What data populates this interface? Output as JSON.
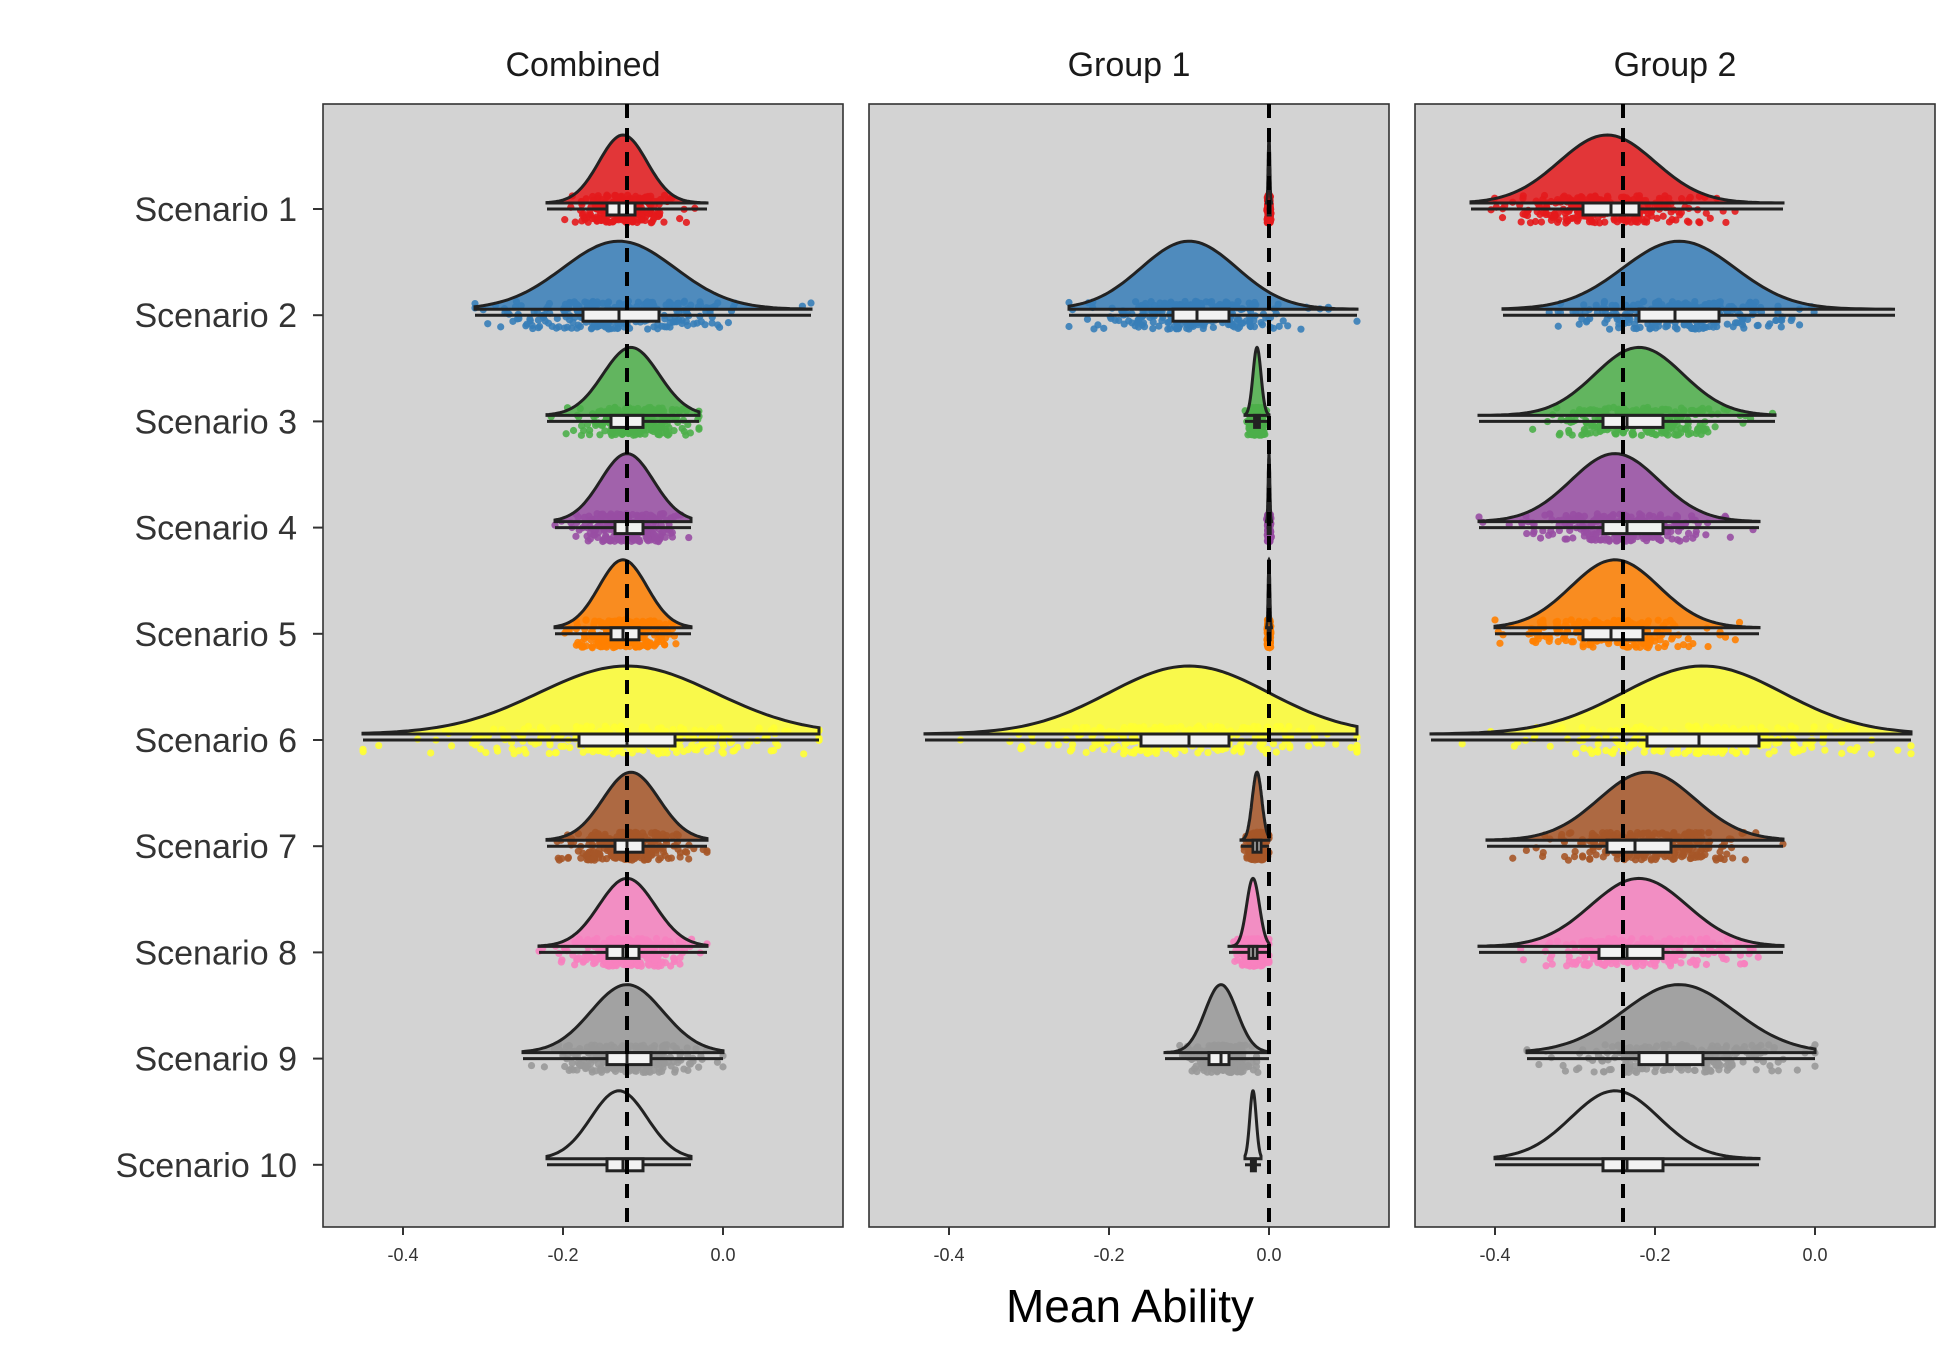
{
  "chart_data": {
    "type": "raincloud",
    "xlabel": "Mean Ability",
    "ylabel": "",
    "xlim": [
      -0.5,
      0.15
    ],
    "x_ticks": [
      -0.4,
      -0.2,
      0.0
    ],
    "x_tick_labels": [
      "-0.4",
      "-0.2",
      "0.0"
    ],
    "grid": false,
    "legend": "none",
    "panel_background": "#d3d3d3",
    "categories": [
      "Scenario 1",
      "Scenario 2",
      "Scenario 3",
      "Scenario 4",
      "Scenario 5",
      "Scenario 6",
      "Scenario 7",
      "Scenario 8",
      "Scenario 9",
      "Scenario 10"
    ],
    "colors": [
      "#e41a1c",
      "#377eb8",
      "#4daf4a",
      "#984ea3",
      "#ff7f00",
      "#ffff33",
      "#a65628",
      "#f781bf",
      "#999999",
      "#d3d3d3"
    ],
    "panels": [
      {
        "title": "Combined",
        "ref_line": -0.12,
        "series": [
          {
            "category": "Scenario 1",
            "mean": -0.125,
            "sd": 0.03,
            "min": -0.22,
            "max": -0.02,
            "q1": -0.145,
            "median": -0.13,
            "q3": -0.11
          },
          {
            "category": "Scenario 2",
            "mean": -0.13,
            "sd": 0.07,
            "min": -0.31,
            "max": 0.11,
            "q1": -0.175,
            "median": -0.13,
            "q3": -0.08
          },
          {
            "category": "Scenario 3",
            "mean": -0.115,
            "sd": 0.035,
            "min": -0.22,
            "max": -0.03,
            "q1": -0.14,
            "median": -0.12,
            "q3": -0.1
          },
          {
            "category": "Scenario 4",
            "mean": -0.12,
            "sd": 0.033,
            "min": -0.21,
            "max": -0.04,
            "q1": -0.135,
            "median": -0.12,
            "q3": -0.1
          },
          {
            "category": "Scenario 5",
            "mean": -0.125,
            "sd": 0.03,
            "min": -0.21,
            "max": -0.04,
            "q1": -0.14,
            "median": -0.125,
            "q3": -0.105
          },
          {
            "category": "Scenario 6",
            "mean": -0.12,
            "sd": 0.11,
            "min": -0.45,
            "max": 0.12,
            "q1": -0.18,
            "median": -0.12,
            "q3": -0.06
          },
          {
            "category": "Scenario 7",
            "mean": -0.115,
            "sd": 0.035,
            "min": -0.22,
            "max": -0.02,
            "q1": -0.135,
            "median": -0.12,
            "q3": -0.1
          },
          {
            "category": "Scenario 8",
            "mean": -0.12,
            "sd": 0.035,
            "min": -0.23,
            "max": -0.02,
            "q1": -0.145,
            "median": -0.125,
            "q3": -0.105
          },
          {
            "category": "Scenario 9",
            "mean": -0.12,
            "sd": 0.045,
            "min": -0.25,
            "max": 0.0,
            "q1": -0.145,
            "median": -0.12,
            "q3": -0.09
          },
          {
            "category": "Scenario 10",
            "mean": -0.13,
            "sd": 0.035,
            "min": -0.22,
            "max": -0.04,
            "q1": -0.145,
            "median": -0.125,
            "q3": -0.1
          }
        ]
      },
      {
        "title": "Group 1",
        "ref_line": 0.0,
        "series": [
          {
            "category": "Scenario 1",
            "mean": 0.0,
            "sd": 0.001,
            "min": -0.003,
            "max": 0.003,
            "q1": -0.001,
            "median": 0.0,
            "q3": 0.001
          },
          {
            "category": "Scenario 2",
            "mean": -0.1,
            "sd": 0.06,
            "min": -0.25,
            "max": 0.11,
            "q1": -0.12,
            "median": -0.09,
            "q3": -0.05
          },
          {
            "category": "Scenario 3",
            "mean": -0.015,
            "sd": 0.005,
            "min": -0.03,
            "max": 0.0,
            "q1": -0.018,
            "median": -0.015,
            "q3": -0.012
          },
          {
            "category": "Scenario 4",
            "mean": 0.0,
            "sd": 0.001,
            "min": -0.003,
            "max": 0.003,
            "q1": -0.001,
            "median": 0.0,
            "q3": 0.001
          },
          {
            "category": "Scenario 5",
            "mean": 0.0,
            "sd": 0.001,
            "min": -0.003,
            "max": 0.003,
            "q1": -0.001,
            "median": 0.0,
            "q3": 0.001
          },
          {
            "category": "Scenario 6",
            "mean": -0.1,
            "sd": 0.1,
            "min": -0.43,
            "max": 0.11,
            "q1": -0.16,
            "median": -0.1,
            "q3": -0.05
          },
          {
            "category": "Scenario 7",
            "mean": -0.015,
            "sd": 0.006,
            "min": -0.035,
            "max": 0.0,
            "q1": -0.02,
            "median": -0.015,
            "q3": -0.01
          },
          {
            "category": "Scenario 8",
            "mean": -0.02,
            "sd": 0.008,
            "min": -0.05,
            "max": 0.0,
            "q1": -0.025,
            "median": -0.02,
            "q3": -0.015
          },
          {
            "category": "Scenario 9",
            "mean": -0.06,
            "sd": 0.02,
            "min": -0.13,
            "max": 0.0,
            "q1": -0.075,
            "median": -0.06,
            "q3": -0.05
          },
          {
            "category": "Scenario 10",
            "mean": -0.02,
            "sd": 0.004,
            "min": -0.03,
            "max": -0.01,
            "q1": -0.022,
            "median": -0.02,
            "q3": -0.017
          }
        ]
      },
      {
        "title": "Group 2",
        "ref_line": -0.24,
        "series": [
          {
            "category": "Scenario 1",
            "mean": -0.26,
            "sd": 0.06,
            "min": -0.43,
            "max": -0.04,
            "q1": -0.29,
            "median": -0.255,
            "q3": -0.22
          },
          {
            "category": "Scenario 2",
            "mean": -0.17,
            "sd": 0.07,
            "min": -0.39,
            "max": 0.1,
            "q1": -0.22,
            "median": -0.175,
            "q3": -0.12
          },
          {
            "category": "Scenario 3",
            "mean": -0.22,
            "sd": 0.055,
            "min": -0.42,
            "max": -0.05,
            "q1": -0.265,
            "median": -0.235,
            "q3": -0.19
          },
          {
            "category": "Scenario 4",
            "mean": -0.25,
            "sd": 0.055,
            "min": -0.42,
            "max": -0.07,
            "q1": -0.265,
            "median": -0.235,
            "q3": -0.19
          },
          {
            "category": "Scenario 5",
            "mean": -0.25,
            "sd": 0.055,
            "min": -0.4,
            "max": -0.07,
            "q1": -0.29,
            "median": -0.255,
            "q3": -0.215
          },
          {
            "category": "Scenario 6",
            "mean": -0.14,
            "sd": 0.1,
            "min": -0.48,
            "max": 0.12,
            "q1": -0.21,
            "median": -0.145,
            "q3": -0.07
          },
          {
            "category": "Scenario 7",
            "mean": -0.21,
            "sd": 0.06,
            "min": -0.41,
            "max": -0.04,
            "q1": -0.26,
            "median": -0.225,
            "q3": -0.18
          },
          {
            "category": "Scenario 8",
            "mean": -0.22,
            "sd": 0.06,
            "min": -0.42,
            "max": -0.04,
            "q1": -0.27,
            "median": -0.235,
            "q3": -0.19
          },
          {
            "category": "Scenario 9",
            "mean": -0.17,
            "sd": 0.07,
            "min": -0.36,
            "max": 0.0,
            "q1": -0.22,
            "median": -0.185,
            "q3": -0.14
          },
          {
            "category": "Scenario 10",
            "mean": -0.25,
            "sd": 0.055,
            "min": -0.4,
            "max": -0.07,
            "q1": -0.265,
            "median": -0.235,
            "q3": -0.19
          }
        ]
      }
    ]
  }
}
